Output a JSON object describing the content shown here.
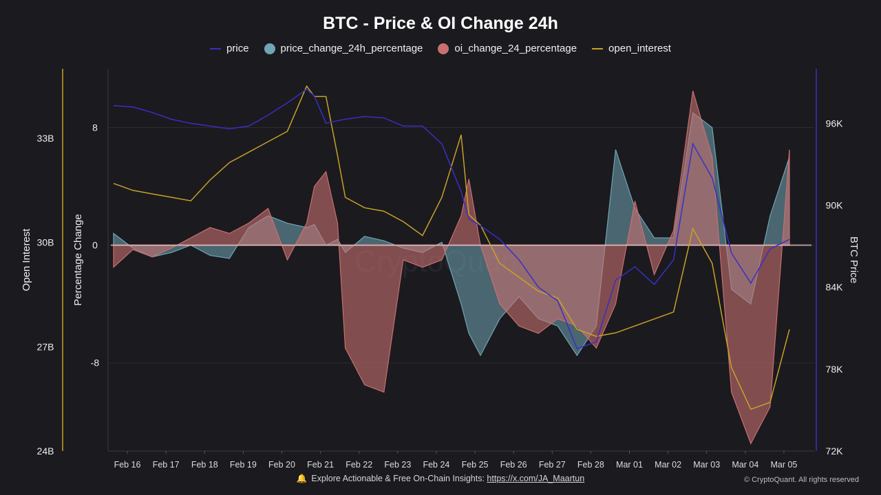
{
  "title": "BTC - Price & OI Change 24h",
  "legend": {
    "price": "price",
    "price_change": "price_change_24h_percentage",
    "oi_change": "oi_change_24_percentage",
    "open_interest": "open_interest"
  },
  "colors": {
    "price": "#3a2fc4",
    "price_change": "#6fa6b5",
    "oi_change": "#c77070",
    "open_interest": "#c9a227"
  },
  "footer": {
    "text": "Explore Actionable & Free On-Chain Insights: ",
    "link": "https://x.com/JA_Maartun",
    "copyright": "© CryptoQuant. All rights reserved",
    "bell_icon": "bell-icon"
  },
  "chart_data": {
    "type": "line",
    "title": "BTC - Price & OI Change 24h",
    "x_labels": [
      "Feb 16",
      "Feb 17",
      "Feb 18",
      "Feb 19",
      "Feb 20",
      "Feb 21",
      "Feb 22",
      "Feb 23",
      "Feb 24",
      "Feb 25",
      "Feb 26",
      "Feb 27",
      "Feb 28",
      "Mar 01",
      "Mar 02",
      "Mar 03",
      "Mar 04",
      "Mar 05"
    ],
    "x": [
      0,
      0.5,
      1,
      1.5,
      2,
      2.5,
      3,
      3.5,
      4,
      4.5,
      5,
      5.2,
      5.5,
      5.8,
      6,
      6.5,
      7,
      7.5,
      8,
      8.5,
      9,
      9.2,
      9.5,
      10,
      10.5,
      11,
      11.5,
      12,
      12.5,
      13,
      13.5,
      14,
      14.5,
      15,
      15.5,
      16,
      16.5,
      17,
      17.5
    ],
    "axes": {
      "left_outer": {
        "label": "Open Interest",
        "ticks": [
          "33B",
          "30B",
          "27B",
          "24B"
        ],
        "range": [
          24,
          35
        ]
      },
      "left_inner": {
        "label": "Percentage Change",
        "ticks": [
          "8",
          "0",
          "-8"
        ],
        "range": [
          -14,
          12
        ]
      },
      "right": {
        "label": "BTC Price",
        "ticks": [
          "96K",
          "90K",
          "84K",
          "78K",
          "72K"
        ],
        "range": [
          72000,
          100000
        ]
      }
    },
    "series": [
      {
        "name": "price",
        "axis": "right",
        "values": [
          97300,
          97200,
          96800,
          96300,
          96000,
          95800,
          95600,
          95800,
          96600,
          97500,
          98500,
          98000,
          96000,
          96200,
          96300,
          96500,
          96400,
          95800,
          95800,
          94500,
          91000,
          89000,
          88500,
          87500,
          86000,
          84000,
          83000,
          79500,
          80000,
          84500,
          85500,
          84200,
          86000,
          94500,
          92000,
          86500,
          84300,
          86800,
          87500
        ]
      },
      {
        "name": "price_change_24h_percentage",
        "axis": "left_inner",
        "values": [
          0.8,
          -0.2,
          -0.8,
          -0.5,
          0.0,
          -0.7,
          -0.9,
          1.2,
          2.0,
          1.5,
          1.2,
          1.4,
          0.0,
          0.4,
          -0.5,
          0.6,
          0.3,
          -0.2,
          -0.5,
          0.2,
          -4.0,
          -6.0,
          -7.5,
          -5.0,
          -3.5,
          -5.0,
          -5.5,
          -7.5,
          -5.5,
          6.5,
          2.5,
          0.5,
          0.5,
          9.0,
          8.0,
          -3.0,
          -4.0,
          2.0,
          6.0
        ]
      },
      {
        "name": "oi_change_24_percentage",
        "axis": "left_inner",
        "values": [
          -1.5,
          -0.3,
          -0.8,
          -0.2,
          0.5,
          1.2,
          0.8,
          1.5,
          2.5,
          -1.0,
          1.5,
          4.0,
          5.0,
          1.5,
          -7.0,
          -9.5,
          -10.0,
          -1.0,
          -1.5,
          -1.0,
          2.0,
          4.5,
          0.0,
          -4.0,
          -5.5,
          -6.0,
          -5.0,
          -5.5,
          -7.0,
          -4.0,
          3.0,
          -2.0,
          1.0,
          10.5,
          6.0,
          -10.0,
          -13.5,
          -11.0,
          6.5
        ]
      },
      {
        "name": "open_interest",
        "axis": "left_outer",
        "values": [
          31.7,
          31.5,
          31.4,
          31.3,
          31.2,
          31.8,
          32.3,
          32.6,
          32.9,
          33.2,
          34.5,
          34.2,
          34.2,
          32.5,
          31.3,
          31.0,
          30.9,
          30.6,
          30.2,
          31.3,
          33.1,
          30.8,
          30.5,
          29.4,
          29.0,
          28.6,
          28.4,
          27.5,
          27.3,
          27.4,
          27.6,
          27.8,
          28.0,
          30.4,
          29.4,
          26.4,
          25.2,
          25.4,
          27.5
        ]
      }
    ],
    "zero_line": true,
    "grid": true,
    "legend_position": "top-center",
    "watermark": "CryptoQuant"
  }
}
